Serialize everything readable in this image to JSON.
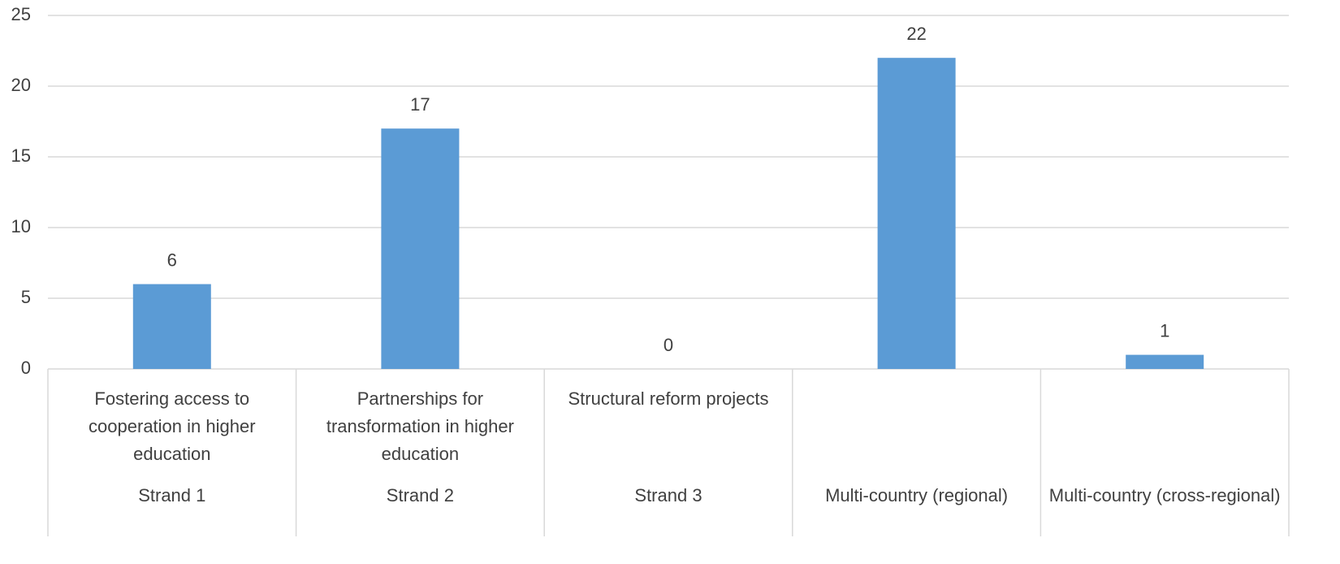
{
  "chart_data": {
    "type": "bar",
    "categories": [
      "Fostering access to cooperation in higher education",
      "Partnerships for transformation in higher education",
      "Structural reform projects",
      null,
      null
    ],
    "groups": [
      "Strand 1",
      "Strand 2",
      "Strand 3",
      "Multi-country (regional)",
      "Multi-country (cross-regional)"
    ],
    "values": [
      6,
      17,
      0,
      22,
      1
    ],
    "color": "#5b9bd5",
    "ylim": [
      0,
      25
    ],
    "yticks": [
      0,
      5,
      10,
      15,
      20,
      25
    ],
    "grid": true
  }
}
